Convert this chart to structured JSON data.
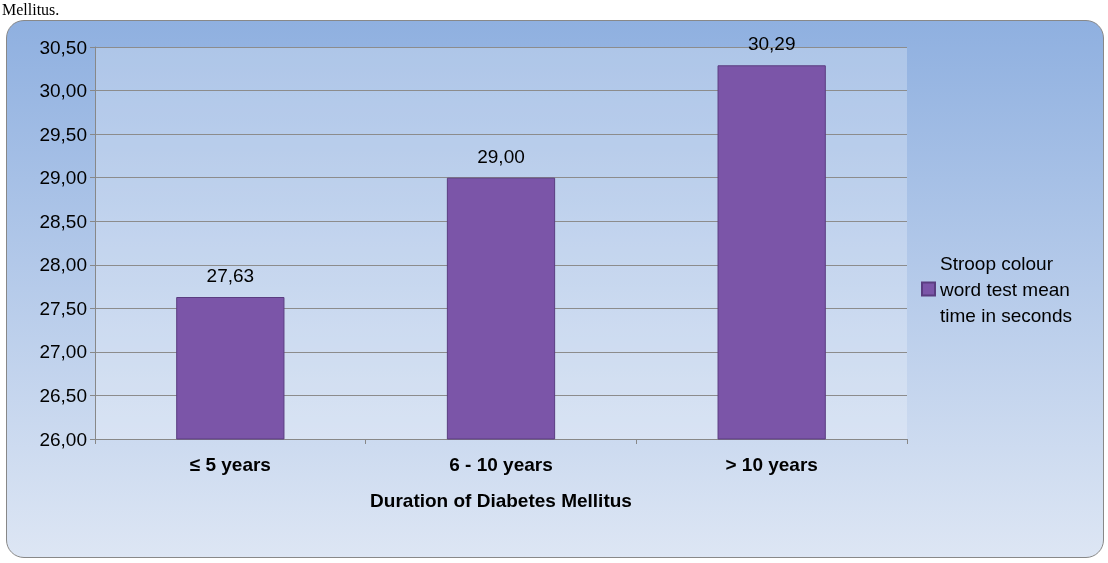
{
  "chart_data": {
    "type": "bar",
    "xlabel": "Duration of Diabetes Mellitus",
    "annotations": [
      "Mellitus."
    ],
    "categories": [
      "≤ 5 years",
      "6 - 10 years",
      "> 10 years"
    ],
    "series": [
      {
        "name": "Stroop colour word test mean time in seconds",
        "color": "#7b55a8",
        "values": [
          27.63,
          29.0,
          30.29
        ],
        "value_labels": [
          "27,63",
          "29,00",
          "30,29"
        ]
      }
    ],
    "ylim": [
      26,
      30.5
    ],
    "yticks": [
      {
        "value": 26,
        "label": "26,00"
      },
      {
        "value": 26.5,
        "label": "26,50"
      },
      {
        "value": 27,
        "label": "27,00"
      },
      {
        "value": 27.5,
        "label": "27,50"
      },
      {
        "value": 28,
        "label": "28,00"
      },
      {
        "value": 28.5,
        "label": "28,50"
      },
      {
        "value": 29,
        "label": "29,00"
      },
      {
        "value": 29.5,
        "label": "29,50"
      },
      {
        "value": 30,
        "label": "30,00"
      },
      {
        "value": 30.5,
        "label": "30,50"
      }
    ],
    "grid": "y",
    "legend": "right"
  }
}
